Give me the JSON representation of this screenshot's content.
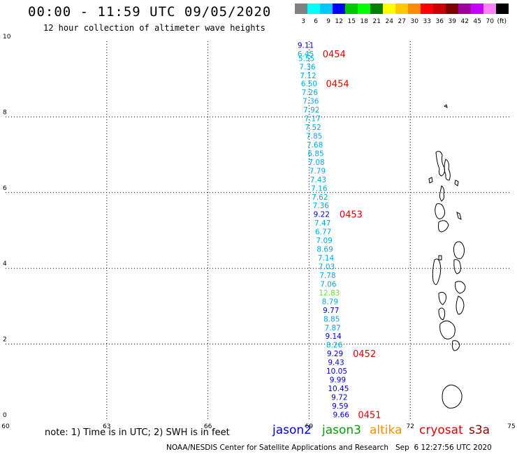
{
  "header": {
    "title": "00:00 - 11:59 UTC 09/05/2020",
    "subtitle": "12 hour collection of altimeter wave heights"
  },
  "legend": {
    "colors": [
      "#808080",
      "#00ffff",
      "#00c8ff",
      "#0000ff",
      "#00c800",
      "#00ff00",
      "#008000",
      "#ffff00",
      "#ffc800",
      "#ff8c00",
      "#ff0000",
      "#c80000",
      "#800000",
      "#a000a0",
      "#c800ff",
      "#ff80ff",
      "#000000"
    ],
    "labels": [
      "3",
      "6",
      "9",
      "12",
      "15",
      "18",
      "21",
      "24",
      "27",
      "30",
      "33",
      "36",
      "39",
      "42",
      "45",
      "70",
      "(ft)"
    ]
  },
  "note": "note: 1) Time is in UTC; 2) SWH is in feet",
  "satellites": [
    {
      "name": "jason2",
      "color": "#0000cc"
    },
    {
      "name": "jason3",
      "color": "#00a000"
    },
    {
      "name": "altika",
      "color": "#ff8c00"
    },
    {
      "name": "cryosat",
      "color": "#dd0000"
    },
    {
      "name": "s3a",
      "color": "#8b0000"
    }
  ],
  "footer": "NOAA/NESDIS Center for Satellite Applications and Research   Sep  6 12:27:56 UTC 2020",
  "chart_data": {
    "type": "scatter",
    "title": "00:00 - 11:59 UTC 09/05/2020",
    "subtitle": "12 hour collection of altimeter wave heights",
    "xlim": [
      60,
      75
    ],
    "ylim": [
      0,
      10
    ],
    "xticks": [
      "60",
      "63",
      "66",
      "69",
      "72",
      "75"
    ],
    "yticks": [
      "0",
      "2",
      "4",
      "6",
      "8",
      "10"
    ],
    "grid": true,
    "points": [
      {
        "x": 68.9,
        "y": 9.9,
        "label": "9.11",
        "color": "#0000cc"
      },
      {
        "x": 68.9,
        "y": 9.67,
        "label": "6.45",
        "color": "#00aadd"
      },
      {
        "x": 68.92,
        "y": 9.55,
        "label": "5.55",
        "color": "#00aadd"
      },
      {
        "x": 68.95,
        "y": 9.33,
        "label": "7.36",
        "color": "#00aadd"
      },
      {
        "x": 68.97,
        "y": 9.1,
        "label": "7.12",
        "color": "#00aadd"
      },
      {
        "x": 69.0,
        "y": 8.88,
        "label": "6.50",
        "color": "#00aadd"
      },
      {
        "x": 69.02,
        "y": 8.65,
        "label": "7.26",
        "color": "#00aadd"
      },
      {
        "x": 69.05,
        "y": 8.42,
        "label": "7.36",
        "color": "#00aadd"
      },
      {
        "x": 69.07,
        "y": 8.19,
        "label": "7.92",
        "color": "#00aadd"
      },
      {
        "x": 69.1,
        "y": 7.96,
        "label": "7.17",
        "color": "#00aadd"
      },
      {
        "x": 69.12,
        "y": 7.73,
        "label": "7.52",
        "color": "#00aadd"
      },
      {
        "x": 69.15,
        "y": 7.5,
        "label": "7.85",
        "color": "#00aadd"
      },
      {
        "x": 69.17,
        "y": 7.27,
        "label": "7.68",
        "color": "#00aadd"
      },
      {
        "x": 69.2,
        "y": 7.04,
        "label": "6.85",
        "color": "#00aadd"
      },
      {
        "x": 69.22,
        "y": 6.81,
        "label": "7.08",
        "color": "#00aadd"
      },
      {
        "x": 69.25,
        "y": 6.58,
        "label": "7.79",
        "color": "#00aadd"
      },
      {
        "x": 69.27,
        "y": 6.35,
        "label": "7.43",
        "color": "#00aadd"
      },
      {
        "x": 69.3,
        "y": 6.12,
        "label": "7.16",
        "color": "#00aadd"
      },
      {
        "x": 69.32,
        "y": 5.89,
        "label": "7.62",
        "color": "#00aadd"
      },
      {
        "x": 69.35,
        "y": 5.66,
        "label": "7.36",
        "color": "#00aadd"
      },
      {
        "x": 69.37,
        "y": 5.43,
        "label": "9.22",
        "color": "#0000cc"
      },
      {
        "x": 69.4,
        "y": 5.2,
        "label": "7.47",
        "color": "#00aadd"
      },
      {
        "x": 69.42,
        "y": 4.97,
        "label": "6.77",
        "color": "#00aadd"
      },
      {
        "x": 69.45,
        "y": 4.74,
        "label": "7.09",
        "color": "#00aadd"
      },
      {
        "x": 69.47,
        "y": 4.51,
        "label": "8.69",
        "color": "#00aadd"
      },
      {
        "x": 69.5,
        "y": 4.28,
        "label": "7.14",
        "color": "#00aadd"
      },
      {
        "x": 69.52,
        "y": 4.05,
        "label": "7.03",
        "color": "#00aadd"
      },
      {
        "x": 69.55,
        "y": 3.82,
        "label": "7.78",
        "color": "#00aadd"
      },
      {
        "x": 69.57,
        "y": 3.59,
        "label": "7.06",
        "color": "#00aadd"
      },
      {
        "x": 69.6,
        "y": 3.36,
        "label": "12.83",
        "color": "#66dd44"
      },
      {
        "x": 69.62,
        "y": 3.13,
        "label": "8.79",
        "color": "#00aadd"
      },
      {
        "x": 69.65,
        "y": 2.9,
        "label": "9.77",
        "color": "#0000cc"
      },
      {
        "x": 69.67,
        "y": 2.67,
        "label": "8.85",
        "color": "#00aadd"
      },
      {
        "x": 69.7,
        "y": 2.44,
        "label": "7.87",
        "color": "#00aadd"
      },
      {
        "x": 69.72,
        "y": 2.21,
        "label": "9.14",
        "color": "#0000cc"
      },
      {
        "x": 69.75,
        "y": 1.98,
        "label": "8.26",
        "color": "#00aadd"
      },
      {
        "x": 69.77,
        "y": 1.75,
        "label": "9.29",
        "color": "#0000cc"
      },
      {
        "x": 69.8,
        "y": 1.52,
        "label": "9.43",
        "color": "#0000cc"
      },
      {
        "x": 69.82,
        "y": 1.29,
        "label": "10.05",
        "color": "#0000cc"
      },
      {
        "x": 69.85,
        "y": 1.06,
        "label": "9.99",
        "color": "#0000cc"
      },
      {
        "x": 69.87,
        "y": 0.83,
        "label": "10.45",
        "color": "#0000cc"
      },
      {
        "x": 69.9,
        "y": 0.6,
        "label": "9.72",
        "color": "#0000cc"
      },
      {
        "x": 69.92,
        "y": 0.37,
        "label": "9.59",
        "color": "#0000cc"
      },
      {
        "x": 69.95,
        "y": 0.14,
        "label": "9.66",
        "color": "#0000cc"
      }
    ],
    "time_labels": [
      {
        "x": 69.4,
        "y": 9.67,
        "label": "0454"
      },
      {
        "x": 69.5,
        "y": 8.88,
        "label": "0454"
      },
      {
        "x": 69.9,
        "y": 5.43,
        "label": "0453"
      },
      {
        "x": 70.3,
        "y": 1.75,
        "label": "0452"
      },
      {
        "x": 70.45,
        "y": 0.14,
        "label": "0451"
      }
    ]
  }
}
